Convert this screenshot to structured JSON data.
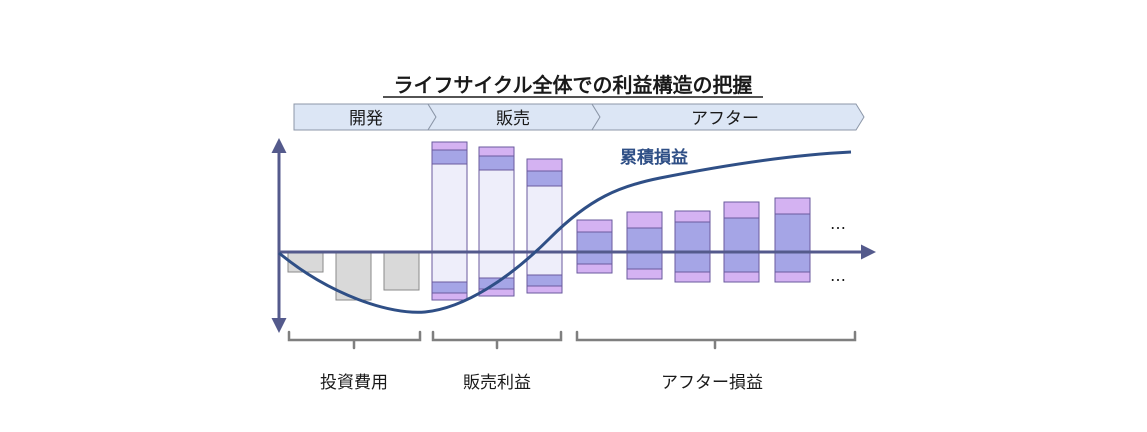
{
  "title": "ライフサイクル全体での利益構造の把握",
  "phases": [
    {
      "label": "開発"
    },
    {
      "label": "販売"
    },
    {
      "label": "アフター"
    }
  ],
  "curve_label": "累積損益",
  "brackets": [
    {
      "label": "投資費用"
    },
    {
      "label": "販売利益"
    },
    {
      "label": "アフター損益"
    }
  ],
  "ellipsis": "…",
  "colors": {
    "phase_fill": "#dce6f5",
    "phase_stroke": "#8c97a8",
    "cost_fill": "#d9d9d9",
    "sales_fill": "#eeeefa",
    "mid_fill": "#a5a5e6",
    "top_fill": "#d4b2f2",
    "bar_stroke": "#6a5a9e",
    "axis": "#545a8c",
    "curve": "#2f4f86",
    "bracket": "#7f7f7f"
  }
}
